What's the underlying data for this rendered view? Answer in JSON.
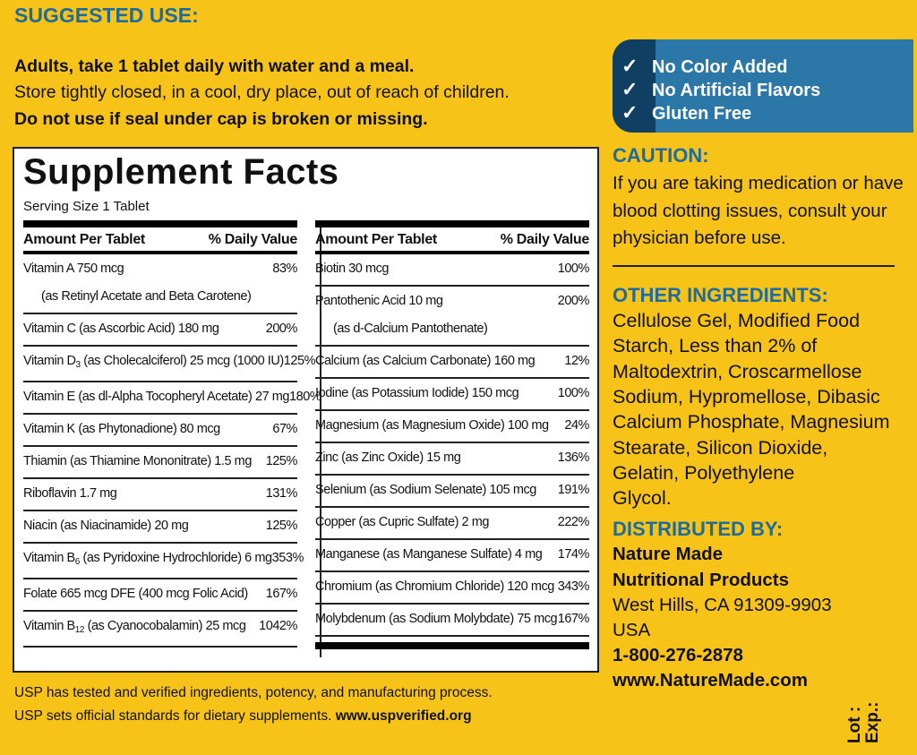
{
  "suggested_use": {
    "heading": "SUGGESTED USE:",
    "lines": [
      "Adults, take 1 tablet daily with water and a meal.",
      "Store tightly closed, in a cool, dry place, out of reach of children.",
      "Do not use if seal under cap is broken or missing."
    ]
  },
  "facts": {
    "title": "Supplement Facts",
    "serving_size": "Serving Size 1 Tablet",
    "header_amount": "Amount Per Tablet",
    "header_dv": "% Daily Value",
    "left_rows": [
      {
        "pre": "Vitamin A  750 mcg",
        "sub": "",
        "post": "",
        "line2": "(as Retinyl Acetate and Beta Carotene)",
        "dv": "83%"
      },
      {
        "pre": "Vitamin C (as Ascorbic Acid)  180 mg",
        "sub": "",
        "post": "",
        "dv": "200%"
      },
      {
        "pre": "Vitamin D",
        "sub": "3",
        "post": " (as Cholecalciferol) 25 mcg (1000 IU)",
        "dv": "125%"
      },
      {
        "pre": "Vitamin E (as dl-Alpha Tocopheryl Acetate)  27 mg",
        "sub": "",
        "post": "",
        "dv": "180%"
      },
      {
        "pre": "Vitamin K (as Phytonadione)  80 mcg",
        "sub": "",
        "post": "",
        "dv": "67%"
      },
      {
        "pre": "Thiamin (as Thiamine Mononitrate)  1.5 mg",
        "sub": "",
        "post": "",
        "dv": "125%"
      },
      {
        "pre": "Riboflavin  1.7 mg",
        "sub": "",
        "post": "",
        "dv": "131%"
      },
      {
        "pre": "Niacin (as Niacinamide)  20 mg",
        "sub": "",
        "post": "",
        "dv": "125%"
      },
      {
        "pre": "Vitamin B",
        "sub": "6",
        "post": " (as Pyridoxine Hydrochloride)  6 mg",
        "dv": "353%"
      },
      {
        "pre": "Folate  665 mcg DFE (400 mcg Folic Acid)",
        "sub": "",
        "post": "",
        "dv": "167%"
      },
      {
        "pre": "Vitamin B",
        "sub": "12",
        "post": " (as Cyanocobalamin)  25 mcg",
        "dv": "1042%"
      }
    ],
    "right_rows": [
      {
        "pre": "Biotin  30 mcg",
        "sub": "",
        "post": "",
        "dv": "100%"
      },
      {
        "pre": "Pantothenic Acid  10 mg",
        "sub": "",
        "post": "",
        "line2": "(as d-Calcium Pantothenate)",
        "dv": "200%"
      },
      {
        "pre": "Calcium (as Calcium Carbonate)  160 mg",
        "sub": "",
        "post": "",
        "dv": "12%"
      },
      {
        "pre": "Iodine (as Potassium Iodide)  150 mcg",
        "sub": "",
        "post": "",
        "dv": "100%"
      },
      {
        "pre": "Magnesium (as Magnesium Oxide)  100 mg",
        "sub": "",
        "post": "",
        "dv": "24%"
      },
      {
        "pre": "Zinc (as Zinc Oxide)  15 mg",
        "sub": "",
        "post": "",
        "dv": "136%"
      },
      {
        "pre": "Selenium (as Sodium Selenate)  105 mcg",
        "sub": "",
        "post": "",
        "dv": "191%"
      },
      {
        "pre": "Copper (as Cupric Sulfate)  2 mg",
        "sub": "",
        "post": "",
        "dv": "222%"
      },
      {
        "pre": "Manganese (as Manganese Sulfate)  4 mg",
        "sub": "",
        "post": "",
        "dv": "174%"
      },
      {
        "pre": "Chromium (as Chromium Chloride)  120 mcg",
        "sub": "",
        "post": "",
        "dv": "343%"
      },
      {
        "pre": "Molybdenum (as Sodium Molybdate)  75 mcg",
        "sub": "",
        "post": "",
        "dv": "167%"
      }
    ]
  },
  "usp": {
    "line1": "USP has tested and verified ingredients, potency, and manufacturing process.",
    "line2": "USP sets official standards for dietary supplements. ",
    "url": "www.uspverified.org"
  },
  "badge": {
    "icon": "checkmark-icon",
    "check": "✓",
    "items": [
      "No Color Added",
      "No Artificial Flavors",
      "Gluten Free"
    ]
  },
  "caution": {
    "heading": "CAUTION:",
    "lines": [
      "If you are taking medication or have",
      "blood clotting issues, consult your",
      "physician before use."
    ]
  },
  "other_ingredients": {
    "heading": "OTHER INGREDIENTS:",
    "lines": [
      "Cellulose Gel, Modified Food",
      "Starch, Less than 2% of",
      "Maltodextrin, Croscarmellose",
      "Sodium, Hypromellose, Dibasic",
      "Calcium Phosphate, Magnesium",
      "Stearate, Silicon Dioxide,",
      "Gelatin, Polyethylene",
      "Glycol."
    ]
  },
  "distributor": {
    "heading": "DISTRIBUTED BY:",
    "name1": "Nature Made",
    "name2": "Nutritional Products",
    "address": "West Hills, CA 91309-9903",
    "country": "USA",
    "phone": "1-800-276-2878",
    "website": "www.NatureMade.com"
  },
  "lot_exp": {
    "lot": "Lot :",
    "exp": "Exp.:"
  },
  "colors": {
    "background": "#F7C318",
    "heading_blue": "#1E6C9E",
    "badge_blue": "#2B77A7",
    "badge_dark": "#0F3F63"
  }
}
